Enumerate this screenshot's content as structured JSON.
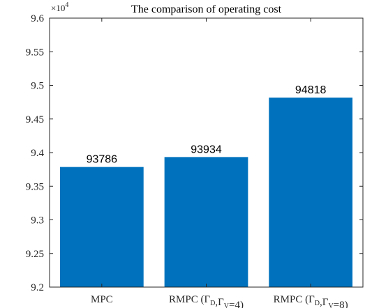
{
  "chart_data": {
    "type": "bar",
    "title": "The comparison of operating cost",
    "xlabel": "",
    "ylabel": "",
    "y_multiplier": {
      "base": "×10",
      "exponent": "4"
    },
    "categories": [
      {
        "main": "MPC",
        "label": "MPC"
      },
      {
        "main": "RMPC (Γ",
        "sub1": "D",
        "mid": ",Γ",
        "sub2": "V",
        "tail": "=4)",
        "label": "RMPC (ΓD,ΓV=4)"
      },
      {
        "main": "RMPC (Γ",
        "sub1": "D",
        "mid": ",Γ",
        "sub2": "V",
        "tail": "=8)",
        "label": "RMPC (ΓD,ΓV=8)"
      }
    ],
    "values": [
      9.3786,
      9.3934,
      9.4818
    ],
    "data_labels": [
      "93786",
      "93934",
      "94818"
    ],
    "ylim": [
      9.2,
      9.6
    ],
    "yticks": [
      "9.2",
      "9.25",
      "9.3",
      "9.35",
      "9.4",
      "9.45",
      "9.5",
      "9.55",
      "9.6"
    ],
    "grid": false,
    "bar_color": "#0072BD",
    "axis_color": "#262626"
  }
}
